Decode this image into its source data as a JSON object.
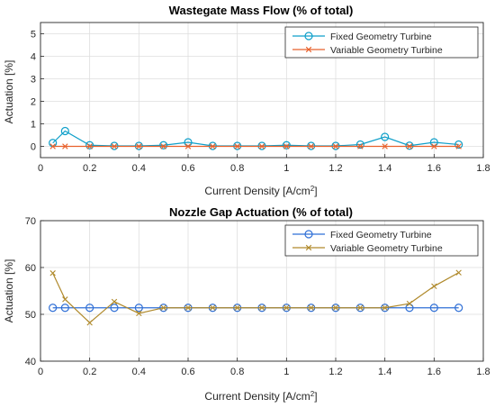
{
  "chart_data": [
    {
      "type": "line",
      "title": "Wastegate Mass Flow (% of total)",
      "xlabel": "Current Density [A/cm",
      "xlabel_sup": "2",
      "xlabel_end": "]",
      "ylabel": "Actuation [%]",
      "xlim": [
        0,
        1.8
      ],
      "ylim": [
        -0.5,
        5.5
      ],
      "xticks": [
        "0",
        "0.2",
        "0.4",
        "0.6",
        "0.8",
        "1",
        "1.2",
        "1.4",
        "1.6",
        "1.8"
      ],
      "yticks": [
        "0",
        "1",
        "2",
        "3",
        "4",
        "5"
      ],
      "grid": true,
      "legend": "top-right",
      "x": [
        0.05,
        0.1,
        0.2,
        0.3,
        0.4,
        0.5,
        0.6,
        0.7,
        0.8,
        0.9,
        1.0,
        1.1,
        1.2,
        1.3,
        1.4,
        1.5,
        1.6,
        1.7
      ],
      "series": [
        {
          "name": "Fixed Geometry Turbine",
          "color": "#0e9fc9",
          "marker": "circle",
          "values": [
            0.15,
            0.68,
            0.05,
            0.02,
            0.02,
            0.05,
            0.18,
            0.02,
            0.02,
            0.02,
            0.05,
            0.02,
            0.02,
            0.08,
            0.42,
            0.03,
            0.18,
            0.08
          ]
        },
        {
          "name": "Variable Geometry Turbine",
          "color": "#e8612c",
          "marker": "x",
          "values": [
            0,
            0,
            0,
            0,
            0,
            0,
            0,
            0,
            0,
            0,
            0,
            0,
            0,
            0,
            0,
            0,
            0,
            0
          ]
        }
      ]
    },
    {
      "type": "line",
      "title": "Nozzle Gap Actuation (% of total)",
      "xlabel": "Current Density [A/cm",
      "xlabel_sup": "2",
      "xlabel_end": "]",
      "ylabel": "Actuation [%]",
      "xlim": [
        0,
        1.8
      ],
      "ylim": [
        40,
        70
      ],
      "xticks": [
        "0",
        "0.2",
        "0.4",
        "0.6",
        "0.8",
        "1",
        "1.2",
        "1.4",
        "1.6",
        "1.8"
      ],
      "yticks": [
        "40",
        "50",
        "60",
        "70"
      ],
      "grid": true,
      "legend": "top-right",
      "x": [
        0.05,
        0.1,
        0.2,
        0.3,
        0.4,
        0.5,
        0.6,
        0.7,
        0.8,
        0.9,
        1.0,
        1.1,
        1.2,
        1.3,
        1.4,
        1.5,
        1.6,
        1.7
      ],
      "series": [
        {
          "name": "Fixed Geometry Turbine",
          "color": "#2f6fd6",
          "marker": "circle",
          "values": [
            51.4,
            51.4,
            51.4,
            51.4,
            51.4,
            51.4,
            51.4,
            51.4,
            51.4,
            51.4,
            51.4,
            51.4,
            51.4,
            51.4,
            51.4,
            51.4,
            51.4,
            51.4
          ]
        },
        {
          "name": "Variable Geometry Turbine",
          "color": "#b08a2c",
          "marker": "x",
          "values": [
            58.8,
            53.2,
            48.2,
            52.7,
            50.2,
            51.4,
            51.4,
            51.4,
            51.4,
            51.4,
            51.4,
            51.4,
            51.4,
            51.4,
            51.4,
            52.3,
            56.0,
            58.9
          ]
        }
      ]
    }
  ]
}
